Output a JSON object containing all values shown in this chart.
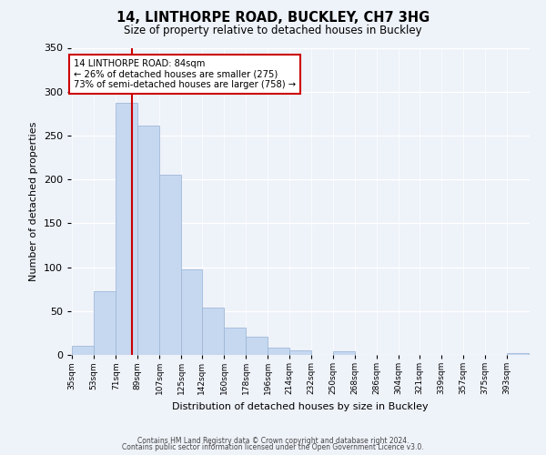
{
  "title": "14, LINTHORPE ROAD, BUCKLEY, CH7 3HG",
  "subtitle": "Size of property relative to detached houses in Buckley",
  "xlabel": "Distribution of detached houses by size in Buckley",
  "ylabel": "Number of detached properties",
  "bin_labels": [
    "35sqm",
    "53sqm",
    "71sqm",
    "89sqm",
    "107sqm",
    "125sqm",
    "142sqm",
    "160sqm",
    "178sqm",
    "196sqm",
    "214sqm",
    "232sqm",
    "250sqm",
    "268sqm",
    "286sqm",
    "304sqm",
    "321sqm",
    "339sqm",
    "357sqm",
    "375sqm",
    "393sqm"
  ],
  "bar_values": [
    10,
    73,
    287,
    261,
    205,
    97,
    54,
    31,
    21,
    8,
    5,
    0,
    4,
    0,
    0,
    0,
    0,
    0,
    0,
    0,
    2
  ],
  "bar_color": "#c5d8f0",
  "bar_edge_color": "#a0b8d8",
  "property_line_label": "14 LINTHORPE ROAD: 84sqm",
  "annotation_line1": "← 26% of detached houses are smaller (275)",
  "annotation_line2": "73% of semi-detached houses are larger (758) →",
  "annotation_box_color": "#ffffff",
  "annotation_box_edge": "#cc0000",
  "line_color": "#cc0000",
  "ylim": [
    0,
    350
  ],
  "yticks": [
    0,
    50,
    100,
    150,
    200,
    250,
    300,
    350
  ],
  "footer1": "Contains HM Land Registry data © Crown copyright and database right 2024.",
  "footer2": "Contains public sector information licensed under the Open Government Licence v3.0.",
  "background_color": "#eef2f9"
}
